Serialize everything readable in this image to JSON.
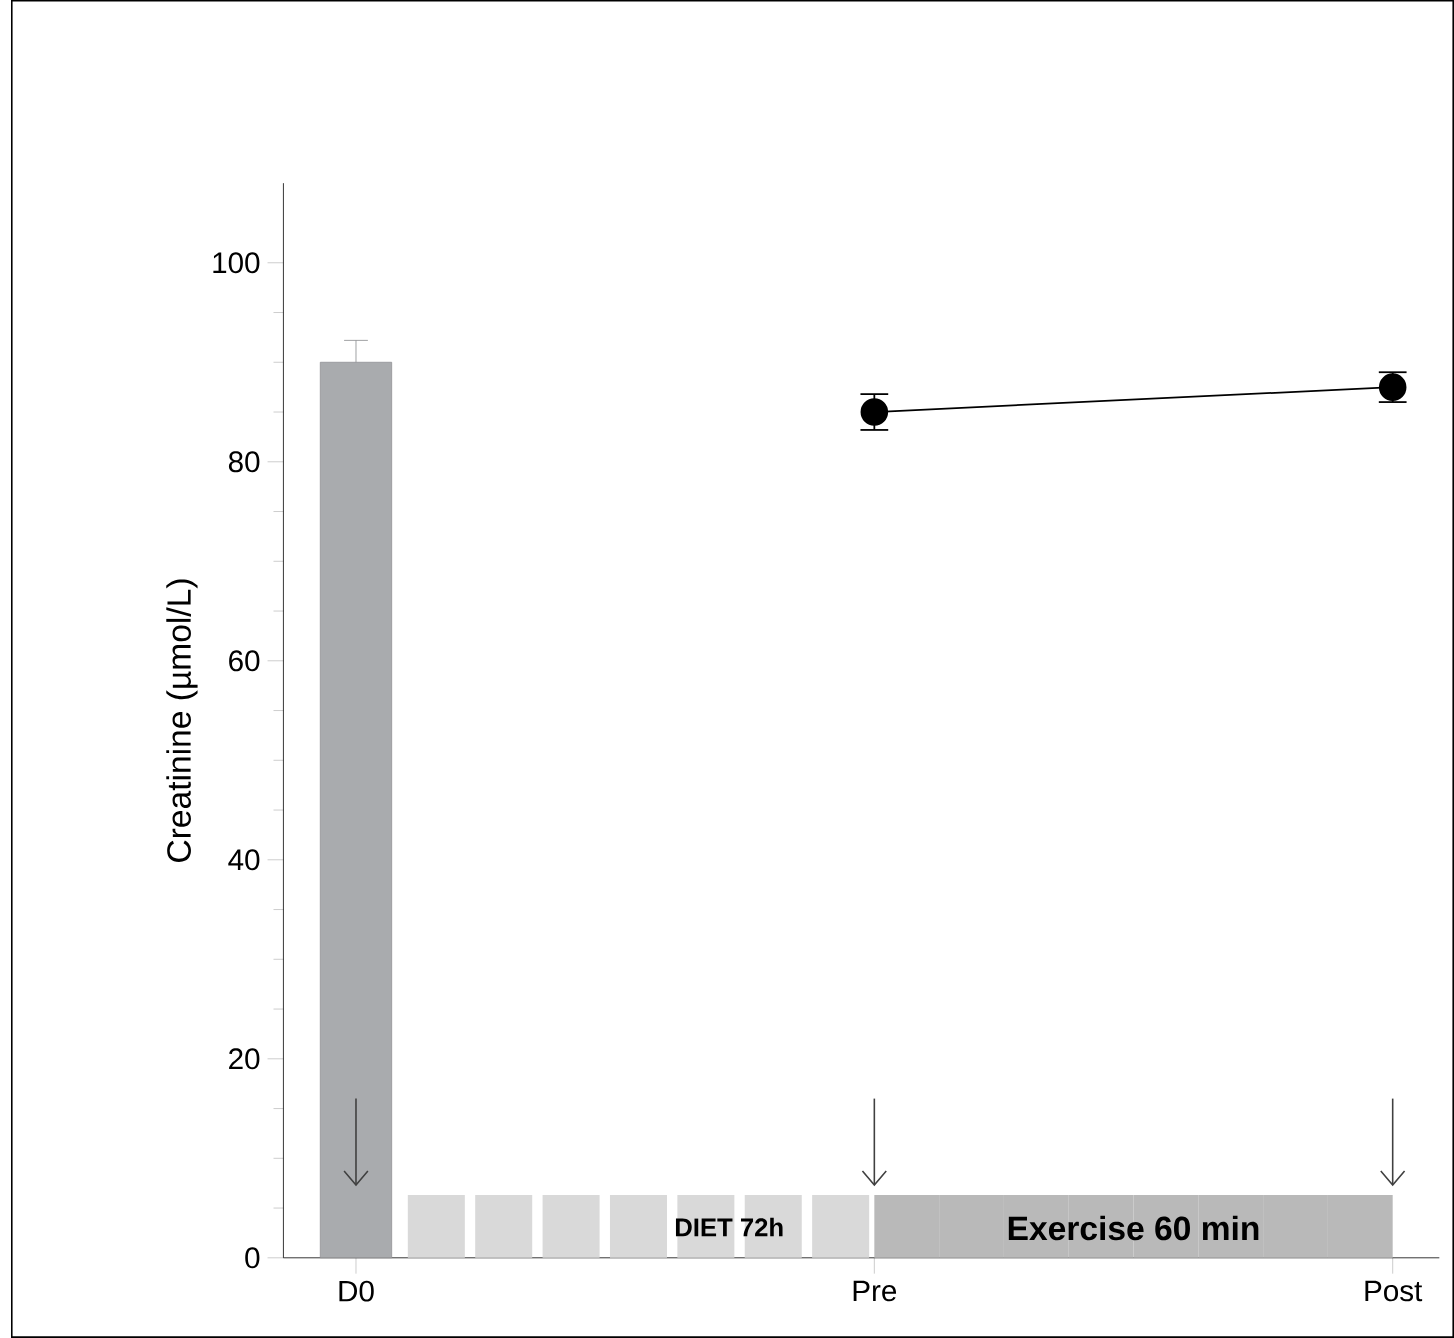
{
  "chart_data": {
    "type": "bar",
    "ylabel": "Creatinine (µmol/L)",
    "categories": [
      "D0",
      "Pre",
      "Post"
    ],
    "series": [
      {
        "color": "#a9abae",
        "values": [
          90,
          null,
          null
        ],
        "errors": [
          2.2,
          null,
          null
        ]
      },
      {
        "type": "line",
        "color": "#000000",
        "marker": "circle",
        "values": [
          null,
          85,
          87.5
        ],
        "errors": [
          null,
          1.8,
          1.5
        ]
      }
    ],
    "ylim": [
      0,
      108
    ],
    "yticks": [
      0,
      20,
      40,
      60,
      80,
      100
    ],
    "grid": false,
    "annotations": [
      "DIET 72h",
      "Exercise 60 min"
    ]
  }
}
